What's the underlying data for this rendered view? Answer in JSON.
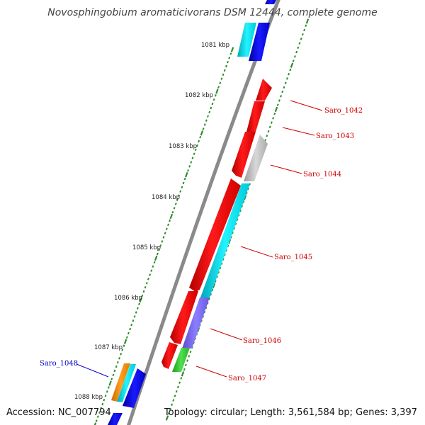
{
  "title": "Novosphingobium aromaticivorans DSM 12444, complete genome",
  "footer": {
    "accession": "Accession: NC_007794",
    "topology": "Topology: circular; Length: 3,561,584 bp; Genes: 3,397"
  },
  "kbp_ticks": [
    "1081 kbp",
    "1082 kbp",
    "1083 kbp",
    "1084 kbp",
    "1085 kbp",
    "1086 kbp",
    "1087 kbp",
    "1088 kbp"
  ],
  "gene_labels": [
    {
      "name": "Saro_1042",
      "color": "#cc0000"
    },
    {
      "name": "Saro_1043",
      "color": "#cc0000"
    },
    {
      "name": "Saro_1044",
      "color": "#cc0000"
    },
    {
      "name": "Saro_1045",
      "color": "#cc0000"
    },
    {
      "name": "Saro_1046",
      "color": "#cc0000"
    },
    {
      "name": "Saro_1047",
      "color": "#cc0000"
    },
    {
      "name": "Saro_1048",
      "color": "#0000cc"
    }
  ],
  "colors": {
    "backbone": "#8a8a8a",
    "tick": "#2e8b2e",
    "red": "#ff0000",
    "cyan": "#00e5ee",
    "blue": "#0000ee",
    "gray": "#bdbdbd",
    "purple": "#7b68ee",
    "green": "#32cd32",
    "orange": "#ff8c00"
  }
}
